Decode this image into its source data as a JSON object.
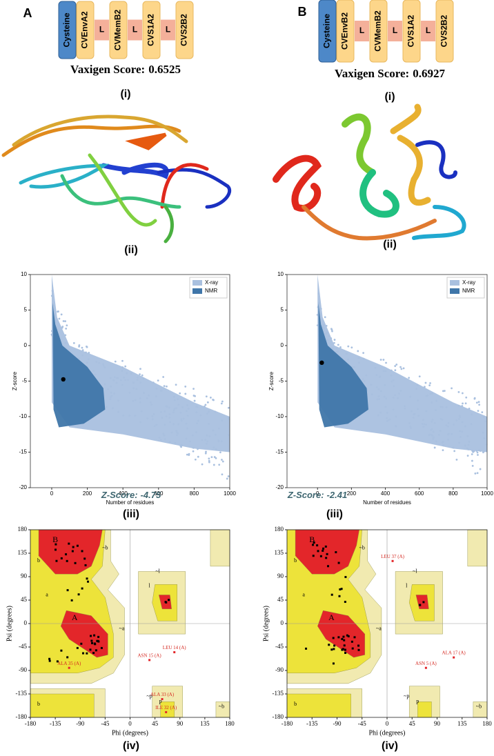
{
  "panels": [
    {
      "letter": "A",
      "construct": [
        "Cysteine",
        "CVEnvA2",
        "L",
        "CVMemB2",
        "L",
        "CVS1A2",
        "L",
        "CVS2B2"
      ],
      "vaxigen_label": "Vaxigen Score:",
      "vaxigen_score": 0.6525,
      "captions": [
        "(i)",
        "(ii)",
        "(iii)",
        "(iv)"
      ],
      "zscore_plot": {
        "type": "scatter",
        "x_label": "Number of residues",
        "y_label": "Z-score",
        "xlim": [
          -120,
          1000
        ],
        "ylim": [
          -20,
          10
        ],
        "xticks": [
          0,
          200,
          400,
          600,
          800,
          1000
        ],
        "yticks": [
          -20,
          -15,
          -10,
          -5,
          0,
          5,
          10
        ],
        "legend": [
          {
            "name": "X-ray",
            "color": "#a9c0df"
          },
          {
            "name": "NMR",
            "color": "#3f76a9"
          }
        ],
        "score_label": "Z-Score:",
        "residues": 65,
        "z_score": -4.75
      },
      "ramachandran": {
        "type": "scatter",
        "x_label": "Phi (degrees)",
        "y_label": "Psi (degrees)",
        "xlim": [
          -180,
          180
        ],
        "ylim": [
          -180,
          180
        ],
        "xticks": [
          -180,
          -135,
          -90,
          -45,
          0,
          45,
          90,
          135,
          180
        ],
        "yticks": [
          -180,
          -135,
          -90,
          -45,
          0,
          45,
          90,
          135,
          180
        ],
        "region_labels": [
          "B",
          "b",
          "a",
          "A",
          "~a",
          "l",
          "~l",
          "~b",
          "p",
          "~p",
          "b",
          "~b"
        ],
        "outliers": [
          {
            "label": "LEU 14 (A)",
            "phi": 80,
            "psi": -55
          },
          {
            "label": "ASN 15 (A)",
            "phi": 35,
            "psi": -70
          },
          {
            "label": "ALA 35 (A)",
            "phi": -110,
            "psi": -85
          },
          {
            "label": "ALA 33 (A)",
            "phi": 58,
            "psi": -145
          },
          {
            "label": "ILE 32 (A)",
            "phi": 65,
            "psi": -170
          }
        ]
      }
    },
    {
      "letter": "B",
      "construct": [
        "Cysteine",
        "CVEnvB2",
        "L",
        "CVMemB2",
        "L",
        "CVS1A2",
        "L",
        "CVS2B2"
      ],
      "vaxigen_label": "Vaxigen Score:",
      "vaxigen_score": 0.6927,
      "captions": [
        "(i)",
        "(ii)",
        "(iii)",
        "(iv)"
      ],
      "zscore_plot": {
        "type": "scatter",
        "x_label": "Number of residues",
        "y_label": "Z-score",
        "xlim": [
          -180,
          1000
        ],
        "ylim": [
          -20,
          10
        ],
        "xticks": [
          0,
          200,
          400,
          600,
          800,
          1000
        ],
        "yticks": [
          -20,
          -15,
          -10,
          -5,
          0,
          5,
          10
        ],
        "legend": [
          {
            "name": "X-ray",
            "color": "#a9c0df"
          },
          {
            "name": "NMR",
            "color": "#3f76a9"
          }
        ],
        "score_label": "Z-Score:",
        "residues": 25,
        "z_score": -2.41
      },
      "ramachandran": {
        "type": "scatter",
        "x_label": "Phi (degrees)",
        "y_label": "Psi (degrees)",
        "xlim": [
          -180,
          180
        ],
        "ylim": [
          -180,
          180
        ],
        "xticks": [
          -180,
          -135,
          -90,
          -45,
          0,
          45,
          90,
          135,
          180
        ],
        "yticks": [
          -180,
          -135,
          -90,
          -45,
          0,
          45,
          90,
          135,
          180
        ],
        "region_labels": [
          "B",
          "b",
          "a",
          "A",
          "~a",
          "l",
          "~l",
          "~b",
          "p",
          "~p",
          "b",
          "~b"
        ],
        "outliers": [
          {
            "label": "LEU 37 (A)",
            "phi": 10,
            "psi": 120
          },
          {
            "label": "ALA 17 (A)",
            "phi": 120,
            "psi": -65
          },
          {
            "label": "ASN 5 (A)",
            "phi": 70,
            "psi": -85
          }
        ]
      }
    }
  ]
}
